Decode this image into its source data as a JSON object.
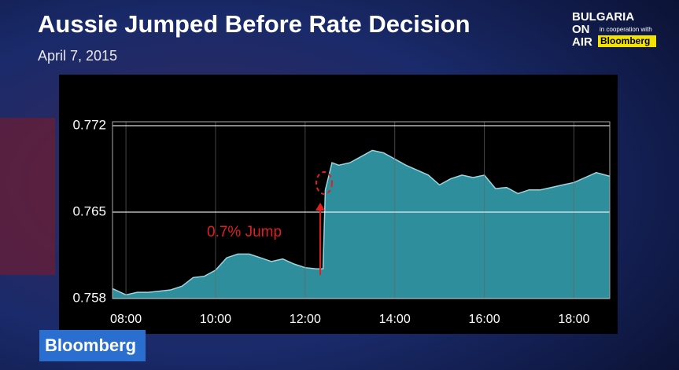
{
  "chart_data": {
    "type": "area",
    "title": "Aussie Jumped Before Rate Decision",
    "subtitle": "April 7, 2015",
    "annotation": "0.7% Jump",
    "color": "#2f8e9c",
    "line_color": "#9fd6de",
    "grid": true,
    "xlim": [
      7.7,
      18.8
    ],
    "xticks": [
      {
        "value": 8,
        "label": "08:00"
      },
      {
        "value": 10,
        "label": "10:00"
      },
      {
        "value": 12,
        "label": "12:00"
      },
      {
        "value": 14,
        "label": "14:00"
      },
      {
        "value": 16,
        "label": "16:00"
      },
      {
        "value": 18,
        "label": "18:00"
      }
    ],
    "ylim": [
      0.758,
      0.772
    ],
    "yticks": [
      0.758,
      0.765,
      0.772
    ],
    "x": [
      7.7,
      8.0,
      8.25,
      8.5,
      8.75,
      9.0,
      9.25,
      9.5,
      9.75,
      10.0,
      10.25,
      10.5,
      10.75,
      11.0,
      11.25,
      11.5,
      11.75,
      12.0,
      12.25,
      12.4,
      12.45,
      12.6,
      12.75,
      13.0,
      13.25,
      13.5,
      13.75,
      14.0,
      14.25,
      14.5,
      14.75,
      15.0,
      15.25,
      15.5,
      15.75,
      16.0,
      16.25,
      16.5,
      16.75,
      17.0,
      17.25,
      17.5,
      17.75,
      18.0,
      18.25,
      18.5,
      18.8
    ],
    "values": [
      0.7588,
      0.7583,
      0.7585,
      0.7585,
      0.7586,
      0.7587,
      0.759,
      0.7597,
      0.7598,
      0.7603,
      0.7613,
      0.7616,
      0.7616,
      0.7613,
      0.761,
      0.7612,
      0.7608,
      0.7605,
      0.7604,
      0.7604,
      0.7668,
      0.769,
      0.7688,
      0.769,
      0.7695,
      0.77,
      0.7698,
      0.7693,
      0.7688,
      0.7684,
      0.768,
      0.7672,
      0.7677,
      0.768,
      0.7678,
      0.768,
      0.7669,
      0.767,
      0.7665,
      0.7668,
      0.7668,
      0.767,
      0.7672,
      0.7674,
      0.7678,
      0.7682,
      0.7679
    ]
  },
  "branding": {
    "channel": [
      "BULGARIA",
      "ON",
      "AIR"
    ],
    "cooperation": "in cooperation with",
    "partner": "Bloomberg",
    "bug": "Bloomberg"
  }
}
